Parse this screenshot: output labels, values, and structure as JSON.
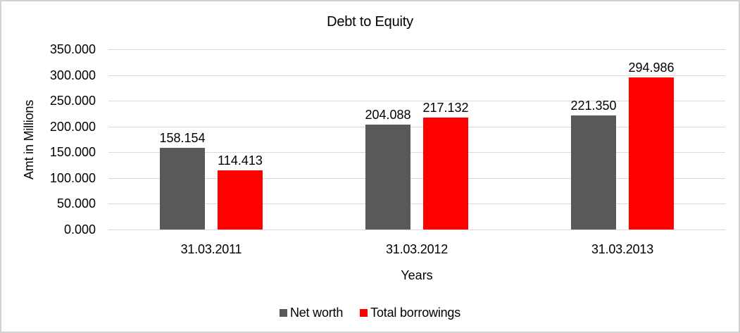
{
  "window": {
    "background": "#FFFFFF",
    "border_color": "#D2D2D2"
  },
  "chart_data": {
    "type": "bar",
    "title": "Debt to Equity",
    "xlabel": "Years",
    "ylabel": "Amt in Millions",
    "categories": [
      "31.03.2011",
      "31.03.2012",
      "31.03.2013"
    ],
    "series": [
      {
        "name": "Net worth",
        "color": "#595959",
        "values": [
          158.154,
          204.088,
          221.35
        ]
      },
      {
        "name": "Total borrowings",
        "color": "#FF0000",
        "values": [
          114.413,
          217.132,
          294.986
        ]
      }
    ],
    "data_labels": [
      [
        "158.154",
        "204.088",
        "221.350"
      ],
      [
        "114.413",
        "217.132",
        "294.986"
      ]
    ],
    "ylim": [
      0,
      350
    ],
    "ytick_step": 50,
    "ytick_labels": [
      "350.000",
      "300.000",
      "250.000",
      "200.000",
      "150.000",
      "100.000",
      "50.000",
      "0.000"
    ],
    "ytick_decimals": 3,
    "label_decimals": 3,
    "grid": true,
    "gridline_color": "#D9D9D9",
    "text_color": "#000000",
    "legend_position": "bottom",
    "legend_entries": [
      "Net worth",
      "Total borrowings"
    ]
  }
}
